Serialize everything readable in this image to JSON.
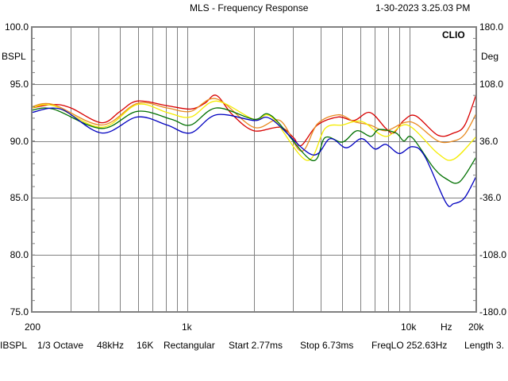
{
  "header": {
    "title": "MLS - Frequency Response",
    "timestamp": "1-30-2023 3.25.03 PM"
  },
  "brand": "CLIO",
  "left_axis": {
    "unit": "BSPL",
    "ticks": [
      "100.0",
      "95.0",
      "90.0",
      "85.0",
      "80.0",
      "75.0"
    ]
  },
  "right_axis": {
    "unit": "Deg",
    "ticks": [
      "180.0",
      "108.0",
      "36.0",
      "-36.0",
      "-108.0",
      "-180.0"
    ]
  },
  "x_axis": {
    "labels": [
      "200",
      "1k",
      "10k",
      "20k"
    ],
    "unit": "Hz"
  },
  "status": [
    "IBSPL",
    "1/3 Octave",
    "48kHz",
    "16K",
    "Rectangular",
    "Start 2.77ms",
    "Stop 6.73ms",
    "FreqLO 252.63Hz",
    "Length 3."
  ],
  "chart_data": {
    "type": "line",
    "title": "MLS - Frequency Response",
    "xlabel": "Hz",
    "ylabel": "dBSPL",
    "y2label": "Deg",
    "xscale": "log",
    "xlim": [
      200,
      20000
    ],
    "ylim": [
      75,
      100
    ],
    "y2lim": [
      -180,
      180
    ],
    "grid": true,
    "series": [
      {
        "name": "red",
        "color": "#d80000",
        "points": [
          [
            200,
            92.9
          ],
          [
            250,
            93.2
          ],
          [
            300,
            92.9
          ],
          [
            412,
            91.6
          ],
          [
            500,
            92.6
          ],
          [
            597,
            93.5
          ],
          [
            812,
            93.1
          ],
          [
            1037,
            92.8
          ],
          [
            1200,
            93.3
          ],
          [
            1354,
            94.0
          ],
          [
            1600,
            92.3
          ],
          [
            1995,
            90.9
          ],
          [
            2616,
            91.2
          ],
          [
            3008,
            90.3
          ],
          [
            3264,
            89.6
          ],
          [
            3857,
            91.4
          ],
          [
            4790,
            92.1
          ],
          [
            5643,
            91.8
          ],
          [
            6650,
            92.5
          ],
          [
            7838,
            91.1
          ],
          [
            8498,
            90.7
          ],
          [
            9436,
            91.8
          ],
          [
            10690,
            92.2
          ],
          [
            13440,
            90.5
          ],
          [
            15840,
            90.7
          ],
          [
            17770,
            91.4
          ],
          [
            20000,
            94.1
          ]
        ]
      },
      {
        "name": "orange",
        "color": "#e88a20",
        "points": [
          [
            200,
            93.0
          ],
          [
            250,
            93.2
          ],
          [
            412,
            91.4
          ],
          [
            597,
            93.3
          ],
          [
            812,
            92.9
          ],
          [
            1037,
            92.6
          ],
          [
            1354,
            93.7
          ],
          [
            1995,
            91.2
          ],
          [
            2616,
            91.8
          ],
          [
            3264,
            89.1
          ],
          [
            3857,
            91.5
          ],
          [
            4790,
            92.3
          ],
          [
            5643,
            91.7
          ],
          [
            6650,
            91.4
          ],
          [
            7838,
            90.9
          ],
          [
            9436,
            91.6
          ],
          [
            10690,
            91.5
          ],
          [
            13440,
            90.0
          ],
          [
            15840,
            90.0
          ],
          [
            17770,
            90.6
          ],
          [
            20000,
            92.4
          ]
        ]
      },
      {
        "name": "yellow",
        "color": "#f4ec00",
        "points": [
          [
            200,
            92.9
          ],
          [
            250,
            93.1
          ],
          [
            412,
            91.2
          ],
          [
            597,
            93.2
          ],
          [
            812,
            92.5
          ],
          [
            1037,
            92.1
          ],
          [
            1354,
            93.5
          ],
          [
            1995,
            91.9
          ],
          [
            2400,
            92.1
          ],
          [
            3458,
            88.3
          ],
          [
            4178,
            91.1
          ],
          [
            5000,
            91.4
          ],
          [
            5643,
            91.7
          ],
          [
            6300,
            91.6
          ],
          [
            7838,
            90.4
          ],
          [
            9800,
            91.4
          ],
          [
            13440,
            88.9
          ],
          [
            15840,
            88.4
          ],
          [
            20000,
            90.4
          ]
        ]
      },
      {
        "name": "green",
        "color": "#007000",
        "points": [
          [
            200,
            92.7
          ],
          [
            250,
            92.8
          ],
          [
            412,
            91.1
          ],
          [
            597,
            92.6
          ],
          [
            850,
            91.9
          ],
          [
            1037,
            91.4
          ],
          [
            1354,
            92.9
          ],
          [
            1995,
            91.9
          ],
          [
            2400,
            92.2
          ],
          [
            3636,
            88.3
          ],
          [
            4178,
            90.3
          ],
          [
            5000,
            89.9
          ],
          [
            5800,
            90.9
          ],
          [
            6700,
            90.4
          ],
          [
            7300,
            91.0
          ],
          [
            8700,
            90.7
          ],
          [
            9436,
            90.0
          ],
          [
            10300,
            90.3
          ],
          [
            12800,
            87.7
          ],
          [
            14600,
            86.7
          ],
          [
            16800,
            86.4
          ],
          [
            20000,
            88.6
          ]
        ]
      },
      {
        "name": "blue",
        "color": "#0000c0",
        "points": [
          [
            200,
            92.5
          ],
          [
            270,
            92.8
          ],
          [
            412,
            90.7
          ],
          [
            597,
            92.1
          ],
          [
            812,
            91.4
          ],
          [
            1037,
            90.7
          ],
          [
            1354,
            92.3
          ],
          [
            1995,
            91.8
          ],
          [
            2400,
            91.9
          ],
          [
            3636,
            88.8
          ],
          [
            4400,
            90.2
          ],
          [
            5200,
            89.4
          ],
          [
            6100,
            90.2
          ],
          [
            7000,
            89.3
          ],
          [
            7838,
            89.7
          ],
          [
            9000,
            88.9
          ],
          [
            10300,
            89.5
          ],
          [
            11700,
            88.7
          ],
          [
            14600,
            84.6
          ],
          [
            15800,
            84.5
          ],
          [
            17700,
            85.0
          ],
          [
            20000,
            86.9
          ]
        ]
      }
    ]
  }
}
